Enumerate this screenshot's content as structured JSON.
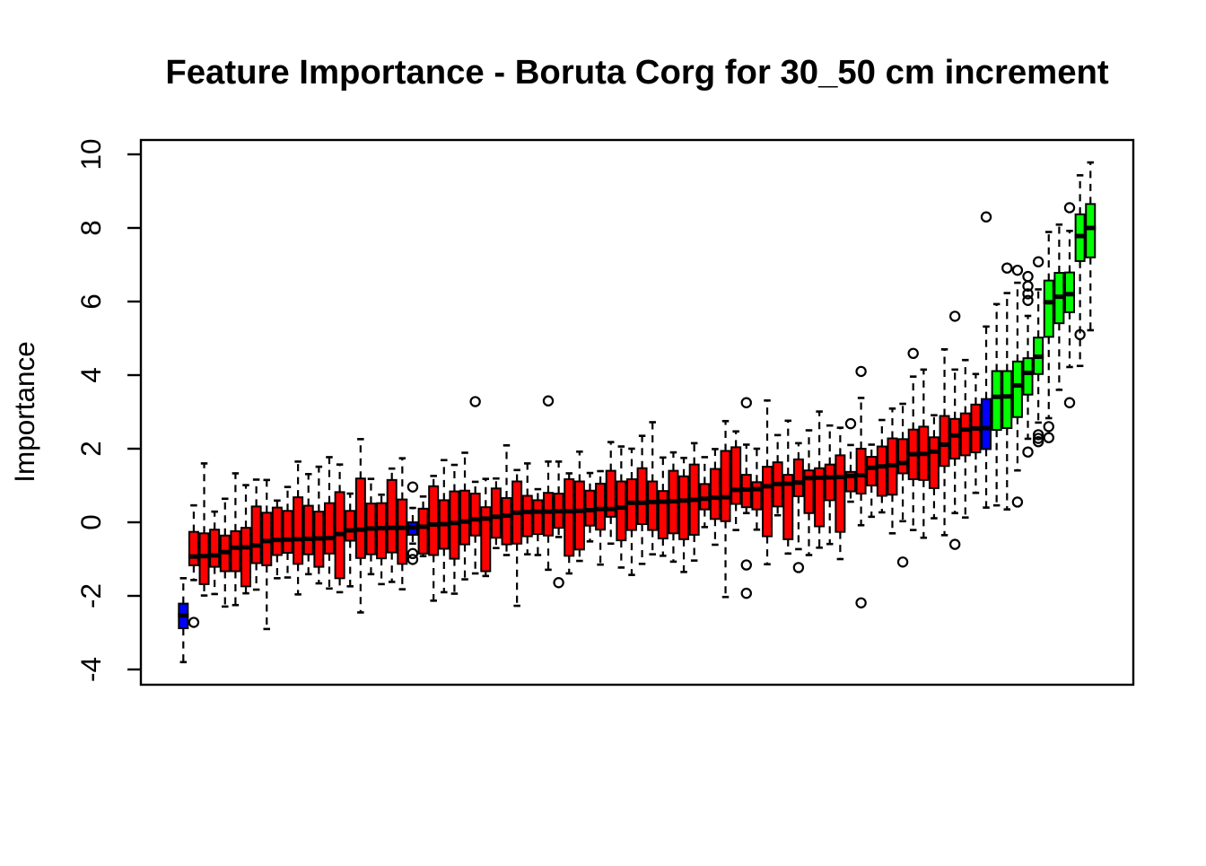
{
  "title": "Feature Importance - Boruta Corg for 30_50 cm increment",
  "chart_data": {
    "type": "boxplot",
    "title": "Feature Importance - Boruta Corg for 30_50 cm increment",
    "xlabel": "",
    "ylabel": "Importance",
    "ylim": [
      -4.4,
      10.4
    ],
    "yticks": [
      -4,
      -2,
      0,
      2,
      4,
      6,
      8,
      10
    ],
    "grid": "off",
    "legend": "none",
    "x_axis_labels": "none",
    "colors": {
      "rejected": "#ff0000",
      "confirmed": "#00ff00",
      "shadow": "#0000ff"
    },
    "series_note": "88 boxplots sorted by median importance; red = rejected attributes, green = confirmed attributes, blue = shadow attributes (shadowMin, shadowMean, shadowMax)",
    "boxes": [
      {
        "i": 1,
        "color": "shadow",
        "low": -3.8,
        "q1": -2.88,
        "median": -2.53,
        "q3": -2.21,
        "high": -1.52,
        "outliers": []
      },
      {
        "i": 2,
        "color": "rejected",
        "low": -1.57,
        "q1": -1.17,
        "median": -0.93,
        "q3": -0.26,
        "high": 0.46,
        "outliers": [
          -2.72
        ]
      },
      {
        "i": 3,
        "color": "rejected",
        "low": -1.99,
        "q1": -1.68,
        "median": -0.92,
        "q3": -0.3,
        "high": 1.6,
        "outliers": []
      },
      {
        "i": 4,
        "color": "rejected",
        "low": -1.95,
        "q1": -1.21,
        "median": -0.9,
        "q3": -0.2,
        "high": 0.29,
        "outliers": []
      },
      {
        "i": 5,
        "color": "rejected",
        "low": -2.29,
        "q1": -1.33,
        "median": -0.81,
        "q3": -0.36,
        "high": 0.64,
        "outliers": []
      },
      {
        "i": 6,
        "color": "rejected",
        "low": -2.25,
        "q1": -1.33,
        "median": -0.69,
        "q3": -0.24,
        "high": 1.33,
        "outliers": []
      },
      {
        "i": 7,
        "color": "rejected",
        "low": -1.93,
        "q1": -1.74,
        "median": -0.68,
        "q3": -0.15,
        "high": 1.01,
        "outliers": []
      },
      {
        "i": 8,
        "color": "rejected",
        "low": -1.83,
        "q1": -1.11,
        "median": -0.63,
        "q3": 0.43,
        "high": 1.16,
        "outliers": []
      },
      {
        "i": 9,
        "color": "rejected",
        "low": -2.9,
        "q1": -1.17,
        "median": -0.51,
        "q3": 0.26,
        "high": 1.15,
        "outliers": []
      },
      {
        "i": 10,
        "color": "rejected",
        "low": -1.52,
        "q1": -0.89,
        "median": -0.48,
        "q3": 0.4,
        "high": 0.59,
        "outliers": []
      },
      {
        "i": 11,
        "color": "rejected",
        "low": -1.5,
        "q1": -0.83,
        "median": -0.47,
        "q3": 0.31,
        "high": 0.96,
        "outliers": []
      },
      {
        "i": 12,
        "color": "rejected",
        "low": -1.96,
        "q1": -1.13,
        "median": -0.46,
        "q3": 0.68,
        "high": 1.65,
        "outliers": []
      },
      {
        "i": 13,
        "color": "rejected",
        "low": -1.41,
        "q1": -0.87,
        "median": -0.45,
        "q3": 0.45,
        "high": 1.31,
        "outliers": []
      },
      {
        "i": 14,
        "color": "rejected",
        "low": -1.66,
        "q1": -1.21,
        "median": -0.44,
        "q3": 0.29,
        "high": 1.51,
        "outliers": []
      },
      {
        "i": 15,
        "color": "rejected",
        "low": -1.8,
        "q1": -0.85,
        "median": -0.43,
        "q3": 0.52,
        "high": 1.77,
        "outliers": []
      },
      {
        "i": 16,
        "color": "rejected",
        "low": -1.9,
        "q1": -1.52,
        "median": -0.32,
        "q3": 0.82,
        "high": 1.57,
        "outliers": []
      },
      {
        "i": 17,
        "color": "rejected",
        "low": -1.74,
        "q1": -0.5,
        "median": -0.22,
        "q3": 0.31,
        "high": 0.78,
        "outliers": []
      },
      {
        "i": 18,
        "color": "rejected",
        "low": -2.45,
        "q1": -0.97,
        "median": -0.2,
        "q3": 1.19,
        "high": 2.26,
        "outliers": []
      },
      {
        "i": 19,
        "color": "rejected",
        "low": -1.41,
        "q1": -0.87,
        "median": -0.17,
        "q3": 0.51,
        "high": 1.18,
        "outliers": []
      },
      {
        "i": 20,
        "color": "rejected",
        "low": -1.68,
        "q1": -0.98,
        "median": -0.16,
        "q3": 0.52,
        "high": 0.75,
        "outliers": []
      },
      {
        "i": 21,
        "color": "rejected",
        "low": -1.62,
        "q1": -0.82,
        "median": -0.15,
        "q3": 1.15,
        "high": 1.46,
        "outliers": []
      },
      {
        "i": 22,
        "color": "rejected",
        "low": -1.82,
        "q1": -1.13,
        "median": -0.15,
        "q3": 0.62,
        "high": 1.74,
        "outliers": []
      },
      {
        "i": 23,
        "color": "shadow",
        "low": -0.58,
        "q1": -0.34,
        "median": -0.14,
        "q3": 0.0,
        "high": 0.39,
        "outliers": [
          0.96,
          -0.85,
          -1.01
        ]
      },
      {
        "i": 24,
        "color": "rejected",
        "low": -0.92,
        "q1": -0.85,
        "median": -0.12,
        "q3": 0.37,
        "high": 0.7,
        "outliers": []
      },
      {
        "i": 25,
        "color": "rejected",
        "low": -2.13,
        "q1": -0.89,
        "median": -0.06,
        "q3": 0.98,
        "high": 1.26,
        "outliers": []
      },
      {
        "i": 26,
        "color": "rejected",
        "low": -1.9,
        "q1": -0.72,
        "median": -0.05,
        "q3": 0.6,
        "high": 1.69,
        "outliers": []
      },
      {
        "i": 27,
        "color": "rejected",
        "low": -1.94,
        "q1": -0.99,
        "median": -0.02,
        "q3": 0.84,
        "high": 1.56,
        "outliers": []
      },
      {
        "i": 28,
        "color": "rejected",
        "low": -1.55,
        "q1": -0.6,
        "median": 0.02,
        "q3": 0.86,
        "high": 1.89,
        "outliers": []
      },
      {
        "i": 29,
        "color": "rejected",
        "low": -1.39,
        "q1": -0.36,
        "median": 0.08,
        "q3": 0.78,
        "high": 1.1,
        "outliers": [
          3.28
        ]
      },
      {
        "i": 30,
        "color": "rejected",
        "low": -1.46,
        "q1": -1.33,
        "median": 0.1,
        "q3": 0.41,
        "high": 1.18,
        "outliers": []
      },
      {
        "i": 31,
        "color": "rejected",
        "low": -0.7,
        "q1": -0.42,
        "median": 0.15,
        "q3": 0.92,
        "high": 1.19,
        "outliers": []
      },
      {
        "i": 32,
        "color": "rejected",
        "low": -0.89,
        "q1": -0.6,
        "median": 0.18,
        "q3": 0.66,
        "high": 2.09,
        "outliers": []
      },
      {
        "i": 33,
        "color": "rejected",
        "low": -2.27,
        "q1": -0.58,
        "median": 0.26,
        "q3": 1.11,
        "high": 1.42,
        "outliers": []
      },
      {
        "i": 34,
        "color": "rejected",
        "low": -0.87,
        "q1": -0.38,
        "median": 0.28,
        "q3": 0.72,
        "high": 1.6,
        "outliers": []
      },
      {
        "i": 35,
        "color": "rejected",
        "low": -0.89,
        "q1": -0.32,
        "median": 0.29,
        "q3": 0.6,
        "high": 0.9,
        "outliers": []
      },
      {
        "i": 36,
        "color": "rejected",
        "low": -1.29,
        "q1": -0.36,
        "median": 0.29,
        "q3": 0.8,
        "high": 1.65,
        "outliers": [
          3.3
        ]
      },
      {
        "i": 37,
        "color": "rejected",
        "low": -0.4,
        "q1": -0.15,
        "median": 0.3,
        "q3": 0.78,
        "high": 1.65,
        "outliers": [
          -1.64
        ]
      },
      {
        "i": 38,
        "color": "rejected",
        "low": -1.39,
        "q1": -0.91,
        "median": 0.3,
        "q3": 1.17,
        "high": 1.33,
        "outliers": []
      },
      {
        "i": 39,
        "color": "rejected",
        "low": -1.05,
        "q1": -0.74,
        "median": 0.31,
        "q3": 1.11,
        "high": 1.92,
        "outliers": []
      },
      {
        "i": 40,
        "color": "rejected",
        "low": -0.52,
        "q1": -0.09,
        "median": 0.33,
        "q3": 0.86,
        "high": 1.34,
        "outliers": []
      },
      {
        "i": 41,
        "color": "rejected",
        "low": -1.15,
        "q1": -0.2,
        "median": 0.36,
        "q3": 1.05,
        "high": 1.39,
        "outliers": []
      },
      {
        "i": 42,
        "color": "rejected",
        "low": -0.58,
        "q1": 0.15,
        "median": 0.36,
        "q3": 1.4,
        "high": 2.18,
        "outliers": []
      },
      {
        "i": 43,
        "color": "rejected",
        "low": -1.23,
        "q1": -0.49,
        "median": 0.4,
        "q3": 1.11,
        "high": 2.06,
        "outliers": []
      },
      {
        "i": 44,
        "color": "rejected",
        "low": -1.43,
        "q1": -0.21,
        "median": 0.53,
        "q3": 1.17,
        "high": 2.0,
        "outliers": []
      },
      {
        "i": 45,
        "color": "rejected",
        "low": -1.13,
        "q1": -0.05,
        "median": 0.53,
        "q3": 1.47,
        "high": 2.35,
        "outliers": []
      },
      {
        "i": 46,
        "color": "rejected",
        "low": -0.87,
        "q1": -0.21,
        "median": 0.55,
        "q3": 1.11,
        "high": 2.72,
        "outliers": []
      },
      {
        "i": 47,
        "color": "rejected",
        "low": -0.91,
        "q1": -0.44,
        "median": 0.56,
        "q3": 0.85,
        "high": 1.76,
        "outliers": []
      },
      {
        "i": 48,
        "color": "rejected",
        "low": -1.07,
        "q1": -0.3,
        "median": 0.57,
        "q3": 1.4,
        "high": 1.9,
        "outliers": []
      },
      {
        "i": 49,
        "color": "rejected",
        "low": -1.35,
        "q1": -0.46,
        "median": 0.59,
        "q3": 1.25,
        "high": 1.75,
        "outliers": []
      },
      {
        "i": 50,
        "color": "rejected",
        "low": -1.04,
        "q1": -0.34,
        "median": 0.61,
        "q3": 1.57,
        "high": 2.15,
        "outliers": []
      },
      {
        "i": 51,
        "color": "rejected",
        "low": -0.13,
        "q1": 0.35,
        "median": 0.64,
        "q3": 1.04,
        "high": 1.77,
        "outliers": []
      },
      {
        "i": 52,
        "color": "rejected",
        "low": -0.61,
        "q1": 0.09,
        "median": 0.67,
        "q3": 1.45,
        "high": 1.99,
        "outliers": []
      },
      {
        "i": 53,
        "color": "rejected",
        "low": -2.03,
        "q1": 0.03,
        "median": 0.68,
        "q3": 1.94,
        "high": 2.75,
        "outliers": []
      },
      {
        "i": 54,
        "color": "rejected",
        "low": -0.21,
        "q1": 0.5,
        "median": 0.88,
        "q3": 2.04,
        "high": 2.47,
        "outliers": []
      },
      {
        "i": 55,
        "color": "rejected",
        "low": 0.25,
        "q1": 0.41,
        "median": 0.89,
        "q3": 1.29,
        "high": 2.11,
        "outliers": [
          3.25,
          -1.16,
          -1.93
        ]
      },
      {
        "i": 56,
        "color": "rejected",
        "low": -0.2,
        "q1": 0.35,
        "median": 0.9,
        "q3": 1.09,
        "high": 2.0,
        "outliers": []
      },
      {
        "i": 57,
        "color": "rejected",
        "low": -1.14,
        "q1": -0.38,
        "median": 0.98,
        "q3": 1.51,
        "high": 3.31,
        "outliers": []
      },
      {
        "i": 58,
        "color": "rejected",
        "low": 0.19,
        "q1": 0.43,
        "median": 1.04,
        "q3": 1.63,
        "high": 2.37,
        "outliers": []
      },
      {
        "i": 59,
        "color": "rejected",
        "low": -0.85,
        "q1": -0.46,
        "median": 1.05,
        "q3": 1.29,
        "high": 2.76,
        "outliers": []
      },
      {
        "i": 60,
        "color": "rejected",
        "low": -0.73,
        "q1": 0.71,
        "median": 1.08,
        "q3": 1.71,
        "high": 2.15,
        "outliers": [
          -1.23
        ]
      },
      {
        "i": 61,
        "color": "rejected",
        "low": -0.89,
        "q1": 0.25,
        "median": 1.2,
        "q3": 1.41,
        "high": 2.5,
        "outliers": []
      },
      {
        "i": 62,
        "color": "rejected",
        "low": -0.69,
        "q1": -0.11,
        "median": 1.21,
        "q3": 1.47,
        "high": 3.01,
        "outliers": []
      },
      {
        "i": 63,
        "color": "rejected",
        "low": -0.59,
        "q1": 0.6,
        "median": 1.22,
        "q3": 1.57,
        "high": 2.63,
        "outliers": []
      },
      {
        "i": 64,
        "color": "rejected",
        "low": -1.0,
        "q1": -0.26,
        "median": 1.23,
        "q3": 1.82,
        "high": 2.57,
        "outliers": []
      },
      {
        "i": 65,
        "color": "rejected",
        "low": 0.56,
        "q1": 0.84,
        "median": 1.26,
        "q3": 1.37,
        "high": 2.1,
        "outliers": [
          2.68
        ]
      },
      {
        "i": 66,
        "color": "rejected",
        "low": -0.08,
        "q1": 0.78,
        "median": 1.28,
        "q3": 2.0,
        "high": 3.38,
        "outliers": [
          4.1,
          -2.19
        ]
      },
      {
        "i": 67,
        "color": "rejected",
        "low": 0.15,
        "q1": 1.0,
        "median": 1.48,
        "q3": 1.78,
        "high": 2.11,
        "outliers": []
      },
      {
        "i": 68,
        "color": "rejected",
        "low": 0.27,
        "q1": 0.72,
        "median": 1.52,
        "q3": 2.06,
        "high": 2.78,
        "outliers": []
      },
      {
        "i": 69,
        "color": "rejected",
        "low": -0.3,
        "q1": 0.75,
        "median": 1.55,
        "q3": 2.28,
        "high": 3.09,
        "outliers": []
      },
      {
        "i": 70,
        "color": "rejected",
        "low": 0.03,
        "q1": 1.33,
        "median": 1.61,
        "q3": 2.26,
        "high": 3.22,
        "outliers": [
          -1.08
        ]
      },
      {
        "i": 71,
        "color": "rejected",
        "low": -0.21,
        "q1": 1.17,
        "median": 1.85,
        "q3": 2.52,
        "high": 3.96,
        "outliers": [
          4.59
        ]
      },
      {
        "i": 72,
        "color": "rejected",
        "low": -0.42,
        "q1": 1.15,
        "median": 1.86,
        "q3": 2.6,
        "high": 4.15,
        "outliers": []
      },
      {
        "i": 73,
        "color": "rejected",
        "low": 0.11,
        "q1": 0.93,
        "median": 1.92,
        "q3": 2.31,
        "high": 2.91,
        "outliers": []
      },
      {
        "i": 74,
        "color": "rejected",
        "low": -0.35,
        "q1": 1.53,
        "median": 2.11,
        "q3": 2.89,
        "high": 4.7,
        "outliers": []
      },
      {
        "i": 75,
        "color": "rejected",
        "low": 0.25,
        "q1": 1.73,
        "median": 2.36,
        "q3": 2.81,
        "high": 4.15,
        "outliers": [
          5.6,
          -0.6
        ]
      },
      {
        "i": 76,
        "color": "rejected",
        "low": 0.13,
        "q1": 1.82,
        "median": 2.52,
        "q3": 2.96,
        "high": 4.41,
        "outliers": []
      },
      {
        "i": 77,
        "color": "rejected",
        "low": 0.8,
        "q1": 1.9,
        "median": 2.55,
        "q3": 3.2,
        "high": 4.03,
        "outliers": []
      },
      {
        "i": 78,
        "color": "shadow",
        "low": 0.4,
        "q1": 1.99,
        "median": 2.56,
        "q3": 3.35,
        "high": 5.32,
        "outliers": [
          8.3
        ]
      },
      {
        "i": 79,
        "color": "confirmed",
        "low": 0.46,
        "q1": 2.51,
        "median": 3.41,
        "q3": 4.11,
        "high": 5.93,
        "outliers": []
      },
      {
        "i": 80,
        "color": "confirmed",
        "low": 0.35,
        "q1": 2.56,
        "median": 3.42,
        "q3": 4.11,
        "high": 6.23,
        "outliers": [
          6.91
        ]
      },
      {
        "i": 81,
        "color": "confirmed",
        "low": 1.41,
        "q1": 2.86,
        "median": 3.72,
        "q3": 4.37,
        "high": 6.51,
        "outliers": [
          6.85,
          0.55
        ]
      },
      {
        "i": 82,
        "color": "confirmed",
        "low": 2.27,
        "q1": 3.47,
        "median": 4.06,
        "q3": 4.46,
        "high": 5.61,
        "outliers": [
          6.68,
          6.42,
          6.21,
          6.03,
          1.91
        ]
      },
      {
        "i": 83,
        "color": "confirmed",
        "low": 2.71,
        "q1": 4.03,
        "median": 4.5,
        "q3": 5.02,
        "high": 6.33,
        "outliers": [
          7.08,
          2.38,
          2.28,
          2.19
        ]
      },
      {
        "i": 84,
        "color": "confirmed",
        "low": 2.83,
        "q1": 5.04,
        "median": 5.98,
        "q3": 6.57,
        "high": 7.89,
        "outliers": [
          2.6,
          2.3
        ]
      },
      {
        "i": 85,
        "color": "confirmed",
        "low": 3.6,
        "q1": 5.41,
        "median": 6.13,
        "q3": 6.78,
        "high": 8.09,
        "outliers": []
      },
      {
        "i": 86,
        "color": "confirmed",
        "low": 4.22,
        "q1": 5.71,
        "median": 6.2,
        "q3": 6.79,
        "high": 7.92,
        "outliers": [
          8.55,
          3.25
        ]
      },
      {
        "i": 87,
        "color": "confirmed",
        "low": 4.25,
        "q1": 7.1,
        "median": 7.78,
        "q3": 8.37,
        "high": 9.43,
        "outliers": [
          5.1
        ]
      },
      {
        "i": 88,
        "color": "confirmed",
        "low": 5.22,
        "q1": 7.2,
        "median": 8.0,
        "q3": 8.65,
        "high": 9.78,
        "outliers": []
      }
    ]
  }
}
